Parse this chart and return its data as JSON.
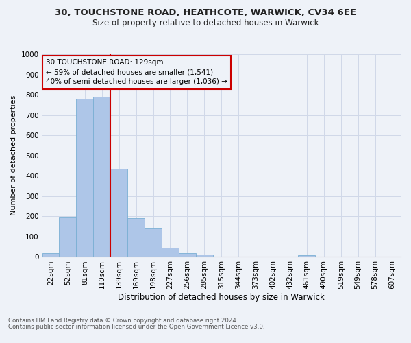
{
  "title1": "30, TOUCHSTONE ROAD, HEATHCOTE, WARWICK, CV34 6EE",
  "title2": "Size of property relative to detached houses in Warwick",
  "xlabel": "Distribution of detached houses by size in Warwick",
  "ylabel": "Number of detached properties",
  "footnote1": "Contains HM Land Registry data © Crown copyright and database right 2024.",
  "footnote2": "Contains public sector information licensed under the Open Government Licence v3.0.",
  "bar_labels": [
    "22sqm",
    "52sqm",
    "81sqm",
    "110sqm",
    "139sqm",
    "169sqm",
    "198sqm",
    "227sqm",
    "256sqm",
    "285sqm",
    "315sqm",
    "344sqm",
    "373sqm",
    "402sqm",
    "432sqm",
    "461sqm",
    "490sqm",
    "519sqm",
    "549sqm",
    "578sqm",
    "607sqm"
  ],
  "bar_values": [
    18,
    195,
    780,
    790,
    435,
    190,
    140,
    46,
    18,
    12,
    0,
    0,
    0,
    0,
    0,
    10,
    0,
    0,
    0,
    0,
    0
  ],
  "bar_color": "#aec6e8",
  "bar_edge_color": "#7aafd4",
  "grid_color": "#d0d8e8",
  "vline_x": 3.5,
  "vline_color": "#cc0000",
  "annotation_text": "30 TOUCHSTONE ROAD: 129sqm\n← 59% of detached houses are smaller (1,541)\n40% of semi-detached houses are larger (1,036) →",
  "annotation_box_color": "#cc0000",
  "ylim": [
    0,
    1000
  ],
  "yticks": [
    0,
    100,
    200,
    300,
    400,
    500,
    600,
    700,
    800,
    900,
    1000
  ],
  "bg_color": "#eef2f8",
  "title1_fontsize": 9.5,
  "title2_fontsize": 8.5,
  "ylabel_fontsize": 8.0,
  "xlabel_fontsize": 8.5,
  "tick_fontsize": 7.5,
  "footnote_fontsize": 6.2,
  "annot_fontsize": 7.5
}
